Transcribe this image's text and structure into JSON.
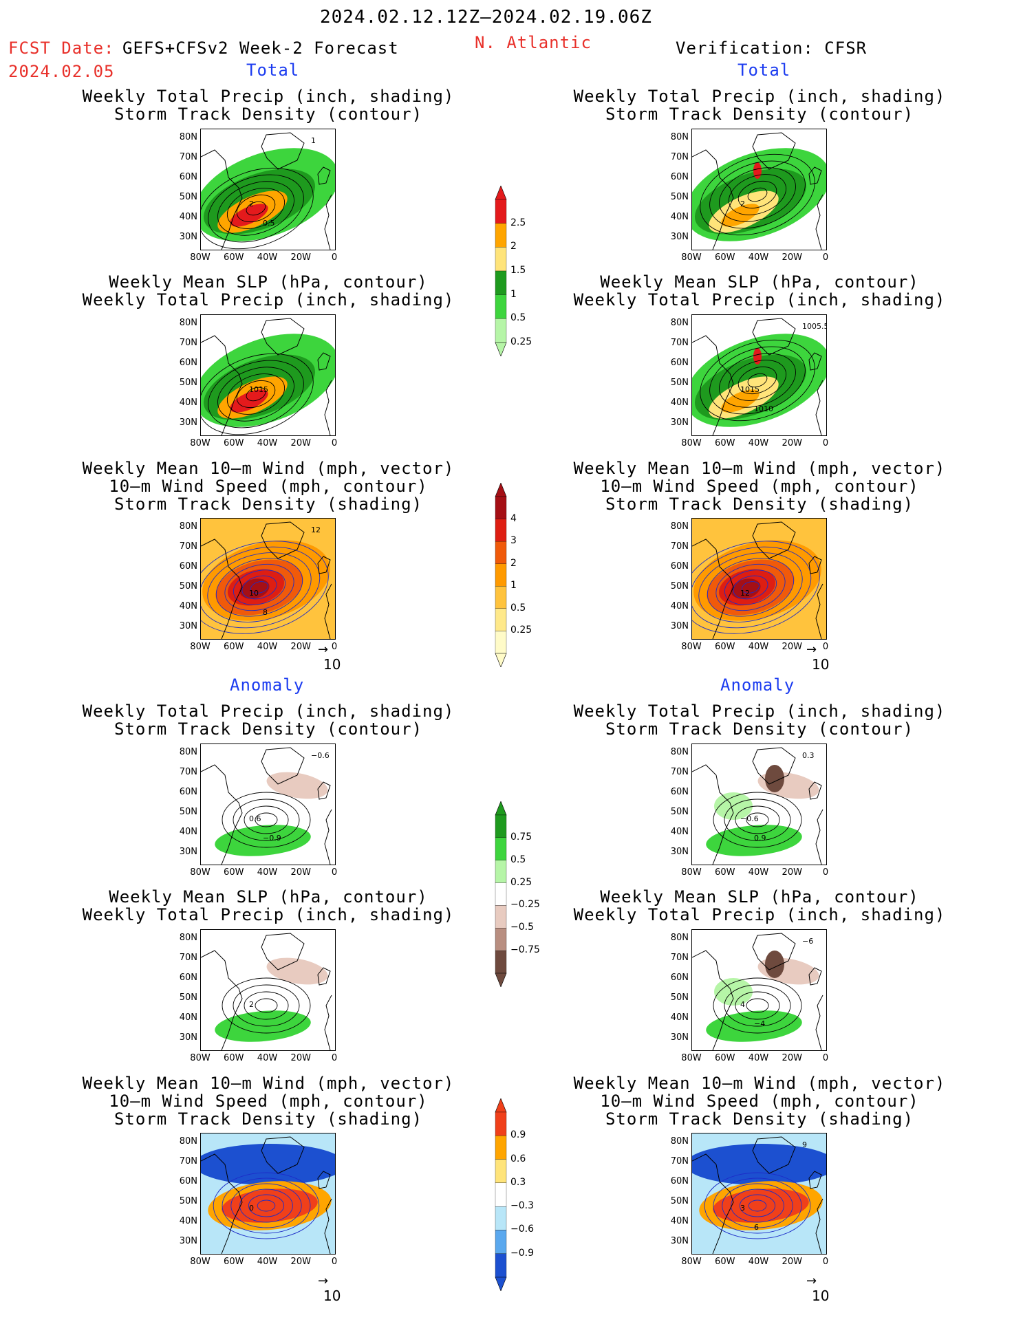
{
  "header": {
    "period": "2024.02.12.12Z—2024.02.19.06Z",
    "fcst_label": "FCST Date:",
    "fcst_date": "2024.02.05",
    "model": "GEFS+CFSv2 Week-2 Forecast",
    "region": "N. Atlantic",
    "verification": "Verification: CFSR"
  },
  "sections": {
    "total": "Total",
    "anomaly": "Anomaly"
  },
  "titles": {
    "precip_track": [
      "Weekly Total Precip (inch, shading)",
      "Storm Track Density (contour)"
    ],
    "slp_precip": [
      "Weekly Mean SLP (hPa, contour)",
      "Weekly Total Precip (inch, shading)"
    ],
    "wind_track": [
      "Weekly Mean 10—m Wind (mph, vector)",
      "10—m Wind Speed (mph, contour)",
      "Storm Track Density (shading)"
    ]
  },
  "axes": {
    "lat_ticks": [
      "80N",
      "70N",
      "60N",
      "50N",
      "40N",
      "30N"
    ],
    "lon_ticks": [
      "80W",
      "60W",
      "40W",
      "20W",
      "0"
    ]
  },
  "vector_ref": "10",
  "colorbars": {
    "precip_total": {
      "labels": [
        "2.5",
        "2",
        "1.5",
        "1",
        "0.5",
        "0.25"
      ],
      "colors": [
        "#e41a1c",
        "#ffa500",
        "#ffe47a",
        "#1e9a1e",
        "#3dd53d",
        "#b6f5a7"
      ]
    },
    "track_total": {
      "labels": [
        "4",
        "3",
        "2",
        "1",
        "0.5",
        "0.25"
      ],
      "colors": [
        "#a50f15",
        "#de1e12",
        "#f05a0a",
        "#ff9a00",
        "#ffc33d",
        "#ffe98a",
        "#fffbc8"
      ]
    },
    "precip_anom": {
      "labels": [
        "0.75",
        "0.5",
        "0.25",
        "−0.25",
        "−0.5",
        "−0.75"
      ],
      "colors": [
        "#1e9a1e",
        "#3dd53d",
        "#b6f5a7",
        "#ffffff",
        "#e8cbc0",
        "#b88e80",
        "#6e4a3e"
      ]
    },
    "track_anom": {
      "labels": [
        "0.9",
        "0.6",
        "0.3",
        "−0.3",
        "−0.6",
        "−0.9"
      ],
      "colors": [
        "#f0401a",
        "#ffa500",
        "#ffe47a",
        "#ffffff",
        "#b8e6f8",
        "#5aa8ee",
        "#1c50d0"
      ]
    }
  },
  "panel_labels": {
    "L1": [
      "2",
      "0.5",
      "1"
    ],
    "R1": [
      "2"
    ],
    "L2": [
      "1015"
    ],
    "R2": [
      "1015",
      "1010",
      "1005.5"
    ],
    "L3": [
      "10",
      "8",
      "12"
    ],
    "R3": [
      "12"
    ],
    "L4": [
      "0.6",
      "−0.9",
      "−0.6"
    ],
    "R4": [
      "−0.6",
      "0.9",
      "0.3"
    ],
    "L5": [
      "2"
    ],
    "R5": [
      "4",
      "−4",
      "−6"
    ],
    "L6": [
      "0"
    ],
    "R6": [
      "3",
      "6",
      "9"
    ]
  }
}
